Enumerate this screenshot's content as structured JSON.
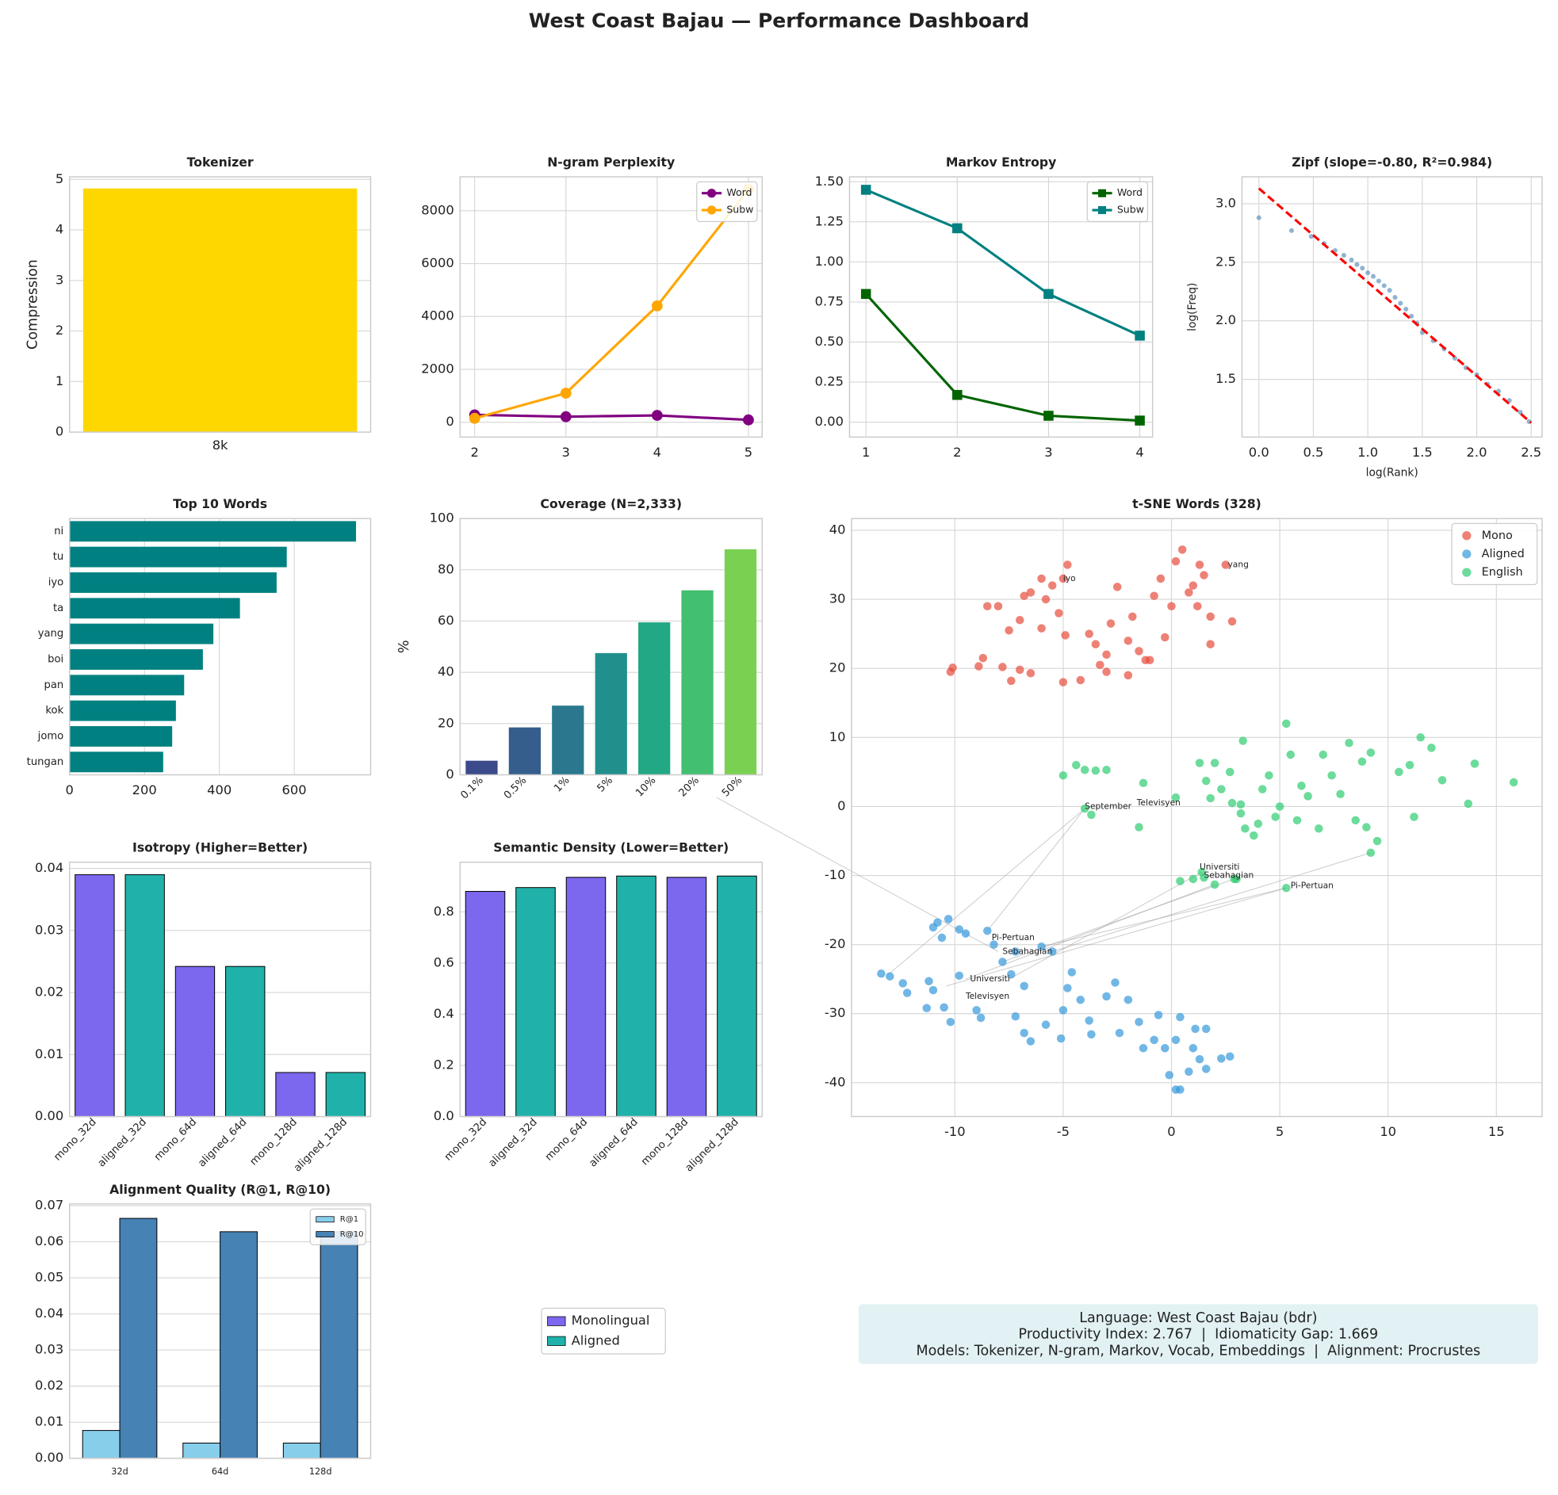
{
  "title": "West Coast Bajau — Performance Dashboard",
  "chart_data": [
    {
      "type": "bar",
      "title": "Tokenizer",
      "ylabel": "Compression",
      "categories": [
        "8k"
      ],
      "values": [
        4.82
      ],
      "color": "#FFD700",
      "ylim": [
        0,
        5.05
      ],
      "yticks": [
        0,
        1,
        2,
        3,
        4,
        5
      ],
      "grid": true
    },
    {
      "type": "line",
      "title": "N-gram Perplexity",
      "x": [
        2,
        3,
        4,
        5
      ],
      "xlim": [
        1.84,
        5.15
      ],
      "xticks": [
        2,
        3,
        4,
        5
      ],
      "ylim": [
        -560,
        9280
      ],
      "yticks": [
        0,
        2000,
        4000,
        6000,
        8000
      ],
      "grid": true,
      "legend": "upper right",
      "series": [
        {
          "name": "Word",
          "color": "#800080",
          "marker": "o",
          "values": [
            280,
            210,
            260,
            90
          ]
        },
        {
          "name": "Subw",
          "color": "#FFA500",
          "marker": "o",
          "values": [
            150,
            1100,
            4400,
            8800
          ]
        }
      ]
    },
    {
      "type": "line",
      "title": "Markov Entropy",
      "x": [
        1,
        2,
        3,
        4
      ],
      "xlim": [
        0.82,
        4.14
      ],
      "xticks": [
        1,
        2,
        3,
        4
      ],
      "ylim": [
        -0.093,
        1.531
      ],
      "yticks": [
        {
          "value": 0,
          "label": "0.00"
        },
        {
          "value": 0.25,
          "label": "0.25"
        },
        {
          "value": 0.5,
          "label": "0.50"
        },
        {
          "value": 0.75,
          "label": "0.75"
        },
        {
          "value": 1,
          "label": "1.00"
        },
        {
          "value": 1.25,
          "label": "1.25"
        },
        {
          "value": 1.5,
          "label": "1.50"
        }
      ],
      "grid": true,
      "legend": "upper right",
      "series": [
        {
          "name": "Word",
          "color": "#006400",
          "marker": "s",
          "values": [
            0.8,
            0.17,
            0.04,
            0.01
          ]
        },
        {
          "name": "Subw",
          "color": "#008080",
          "marker": "s",
          "values": [
            1.45,
            1.21,
            0.8,
            0.54
          ]
        }
      ]
    },
    {
      "type": "scatter",
      "title": "Zipf (slope=-0.80, R²=0.984)",
      "xlabel": "log(Rank)",
      "ylabel": "log(Freq)",
      "color": "#4682B4",
      "x": [
        0,
        0.3,
        0.48,
        0.6,
        0.7,
        0.78,
        0.85,
        0.9,
        0.95,
        1.0,
        1.05,
        1.1,
        1.15,
        1.2,
        1.25,
        1.3,
        1.35,
        1.4,
        1.45,
        1.5,
        1.6,
        1.7,
        1.8,
        1.9,
        2.0,
        2.1,
        2.2,
        2.3,
        2.4,
        2.48
      ],
      "y": [
        2.88,
        2.77,
        2.72,
        2.66,
        2.6,
        2.56,
        2.52,
        2.48,
        2.45,
        2.41,
        2.38,
        2.34,
        2.3,
        2.26,
        2.2,
        2.15,
        2.1,
        2.04,
        1.98,
        1.9,
        1.83,
        1.76,
        1.68,
        1.6,
        1.54,
        1.46,
        1.4,
        1.32,
        1.22,
        1.14
      ],
      "fit": {
        "color": "#FF0000",
        "x": [
          0,
          2.5
        ],
        "y": [
          3.13,
          1.13
        ]
      },
      "xlim": [
        -0.155,
        2.6
      ],
      "xticks": [
        {
          "value": 0,
          "label": "0.0"
        },
        0.5,
        {
          "value": 1,
          "label": "1.0"
        },
        1.5,
        {
          "value": 2,
          "label": "2.0"
        },
        2.5
      ],
      "ylim": [
        1.008,
        3.229
      ],
      "yticks": [
        1.5,
        {
          "value": 2,
          "label": "2.0"
        },
        2.5,
        {
          "value": 3,
          "label": "3.0"
        }
      ],
      "grid": true
    },
    {
      "type": "barh",
      "title": "Top 10 Words",
      "categories": [
        "ni",
        "tu",
        "iyo",
        "ta",
        "yang",
        "boi",
        "pan",
        "kok",
        "jomo",
        "tungan"
      ],
      "values": [
        765,
        580,
        553,
        455,
        384,
        356,
        306,
        284,
        274,
        250
      ],
      "color": "#008080",
      "xlim": [
        0,
        804
      ],
      "xticks": [
        0,
        200,
        400,
        600
      ],
      "grid": true
    },
    {
      "type": "bar",
      "title": "Coverage (N=2,333)",
      "ylabel": "%",
      "categories": [
        "0.1%",
        "0.5%",
        "1%",
        "5%",
        "10%",
        "20%",
        "50%"
      ],
      "values": [
        5.5,
        18.5,
        27,
        47.5,
        59.5,
        72,
        88
      ],
      "colors": [
        "#3b4a8a",
        "#355e8d",
        "#2a788e",
        "#21908d",
        "#22a884",
        "#43bf71",
        "#7ad151"
      ],
      "ylim": [
        0,
        100
      ],
      "yticks": [
        0,
        20,
        40,
        60,
        80,
        100
      ],
      "grid": true
    },
    {
      "type": "tsne",
      "title": "t-SNE Words (328)",
      "legend": "upper right",
      "grid": true,
      "xlim": [
        -14.77,
        17.11
      ],
      "xticks": [
        -10,
        -5,
        0,
        5,
        10,
        15
      ],
      "ylim": [
        -44.9,
        41.7
      ],
      "yticks": [
        -40,
        -30,
        -20,
        -10,
        0,
        10,
        20,
        30,
        40
      ],
      "series": [
        {
          "name": "Mono",
          "color": "#e74c3c",
          "x": [
            -10.2,
            -10.1,
            -8.7,
            -8.5,
            -8,
            -7.5,
            -7.8,
            -7.4,
            -7,
            -6.5,
            -7,
            -6.8,
            -6.5,
            -6,
            -5.8,
            -5.5,
            -5.2,
            -5,
            -4.8,
            -4.9,
            -6,
            -5,
            -4.2,
            -3.8,
            -3.5,
            -3,
            -3.3,
            -3,
            -2.5,
            -2.8,
            -2,
            -2,
            -1.8,
            -1.5,
            -1.2,
            -1,
            -0.8,
            -0.5,
            -0.3,
            0,
            0.2,
            0.5,
            0.8,
            1,
            1.2,
            1.3,
            1.5,
            1.8,
            1.8,
            2.5,
            2.8,
            -8.9
          ],
          "y": [
            19.5,
            20.1,
            21.5,
            29,
            29,
            25.5,
            20.2,
            18.2,
            19.8,
            19.3,
            27,
            30.5,
            31,
            33,
            30,
            32,
            28,
            33,
            35,
            24.8,
            25.8,
            18,
            18.3,
            25,
            23.5,
            22,
            20.5,
            19.5,
            31.8,
            26.5,
            24,
            19,
            27.5,
            22.5,
            21.2,
            21.2,
            30.5,
            33,
            24.5,
            29,
            35.5,
            37.2,
            31,
            32,
            29,
            35,
            33.5,
            27.5,
            23.5,
            35,
            26.8,
            20.3
          ]
        },
        {
          "name": "Aligned",
          "color": "#3498db",
          "x": [
            -13.4,
            -13,
            -12.4,
            -12.2,
            -11,
            -10.8,
            -10.6,
            -10.3,
            -9.8,
            -9.5,
            -11.2,
            -11,
            -11.3,
            -10.5,
            -10.2,
            -9.8,
            -9,
            -8.8,
            -8.5,
            -8.2,
            -7.8,
            -7.4,
            -7.2,
            -6.8,
            -6,
            -5.5,
            -7.2,
            -6.8,
            -6.5,
            -5.8,
            -5.1,
            -5,
            -4.8,
            -4.6,
            -4.2,
            -3.8,
            -3.7,
            -3,
            -2.6,
            -2.4,
            -2,
            -1.5,
            -1.3,
            -0.8,
            -0.6,
            -0.3,
            -0.1,
            0.2,
            0.2,
            0.4,
            0.8,
            1,
            1.1,
            1.3,
            1.6,
            1.6,
            2.3,
            2.7,
            0.4
          ],
          "y": [
            -24.2,
            -24.6,
            -25.6,
            -27,
            -17.5,
            -16.8,
            -19,
            -16.3,
            -17.8,
            -18.4,
            -25.3,
            -26.6,
            -29.2,
            -29.1,
            -31.2,
            -24.5,
            -29.5,
            -30.6,
            -18,
            -20,
            -22.5,
            -24.3,
            -21,
            -26,
            -20.3,
            -21,
            -30.4,
            -32.8,
            -34,
            -31.6,
            -33.6,
            -29.5,
            -26.3,
            -24,
            -28,
            -31,
            -33,
            -27.5,
            -25.5,
            -32.8,
            -28,
            -31.2,
            -35,
            -33.8,
            -30.2,
            -35,
            -38.9,
            -33.8,
            -41,
            -30.5,
            -38.4,
            -35,
            -32.2,
            -36.6,
            -32.2,
            -38,
            -36.5,
            -36.2,
            -41
          ]
        },
        {
          "name": "English",
          "color": "#2ecc71",
          "x": [
            -5,
            -4.4,
            -4,
            -3.5,
            -3,
            -4,
            -3.7,
            -1.5,
            -1.3,
            0.2,
            0.4,
            1,
            1.3,
            1.4,
            1.5,
            1.6,
            1.8,
            2,
            2,
            2.3,
            2.7,
            2.8,
            3.2,
            3.2,
            3,
            3.3,
            3.4,
            3.8,
            4,
            4.2,
            4.5,
            4.8,
            5,
            5.3,
            5.5,
            5.8,
            6,
            6.3,
            6.8,
            7,
            7.4,
            7.8,
            8.2,
            8.5,
            8.8,
            9,
            9.2,
            9.5,
            9.2,
            10.5,
            11,
            11.2,
            11.5,
            12,
            12.5,
            13.7,
            14,
            15.8,
            5.3,
            2.9
          ],
          "y": [
            4.5,
            6,
            5.3,
            5.2,
            5.3,
            -0.3,
            -1.2,
            -3,
            3.4,
            1.3,
            -10.8,
            -10.5,
            6.3,
            -9.5,
            -10.3,
            3.7,
            1.2,
            -11.3,
            6.3,
            2.5,
            5,
            0.5,
            -1,
            0.3,
            -10.5,
            9.5,
            -3.2,
            -4.2,
            -2.5,
            2.5,
            4.5,
            -1.5,
            0,
            12,
            7.5,
            -2,
            3,
            1.5,
            -3.2,
            7.5,
            4.5,
            1.8,
            9.2,
            -2,
            6.5,
            -3,
            7.8,
            -5,
            -6.7,
            5,
            6,
            -1.5,
            10,
            8.5,
            3.8,
            0.4,
            6.2,
            3.5,
            -11.8,
            -10.5
          ]
        }
      ],
      "links": [
        {
          "x": [
            -13.1,
            -4
          ],
          "y": [
            -24.4,
            -0.3
          ]
        },
        {
          "x": [
            -8.5,
            -4
          ],
          "y": [
            -18,
            -0.3
          ]
        },
        {
          "x": [
            -8,
            -21
          ],
          "y": [
            -21,
            1.3
          ]
        },
        {
          "x": [
            -7.5,
            1.4
          ],
          "y": [
            -25,
            -9.5
          ]
        },
        {
          "x": [
            -7.8,
            2.9
          ],
          "y": [
            -22.5,
            -10.5
          ]
        },
        {
          "x": [
            -6,
            5.3
          ],
          "y": [
            -20.3,
            -11.8
          ]
        },
        {
          "x": [
            -5.5,
            9.2
          ],
          "y": [
            -21,
            -6.7
          ]
        },
        {
          "x": [
            -9.5,
            2
          ],
          "y": [
            -25,
            -11.3
          ]
        },
        {
          "x": [
            -10.4,
            5.3
          ],
          "y": [
            -26,
            -11.8
          ]
        }
      ],
      "annotations": [
        {
          "text": "yang",
          "x": 2.6,
          "y": 35,
          "color": "#e74c3c"
        },
        {
          "text": "iyo",
          "x": -5,
          "y": 33,
          "color": "#e74c3c"
        },
        {
          "text": "September",
          "x": -4,
          "y": 0,
          "color": "#2ecc71"
        },
        {
          "text": "Televisyen",
          "x": -1.6,
          "y": 0.5,
          "color": "#2ecc71"
        },
        {
          "text": "Universiti",
          "x": 1.3,
          "y": -8.8,
          "color": "#2ecc71"
        },
        {
          "text": "Sebahagian",
          "x": 1.5,
          "y": -10,
          "color": "#2ecc71"
        },
        {
          "text": "Pi-Pertuan",
          "x": 5.5,
          "y": -11.5,
          "color": "#2ecc71"
        },
        {
          "text": "Pi-Pertuan",
          "x": -8.3,
          "y": -19,
          "color": "#3498db"
        },
        {
          "text": "Sebahagian",
          "x": -7.8,
          "y": -21,
          "color": "#3498db"
        },
        {
          "text": "Universiti",
          "x": -9.3,
          "y": -25,
          "color": "#3498db"
        },
        {
          "text": "Televisyen",
          "x": -9.5,
          "y": -27.5,
          "color": "#3498db"
        }
      ]
    },
    {
      "type": "bar",
      "title": "Isotropy (Higher=Better)",
      "categories": [
        "mono_32d",
        "aligned_32d",
        "mono_64d",
        "aligned_64d",
        "mono_128d",
        "aligned_128d"
      ],
      "values": [
        0.039,
        0.039,
        0.0242,
        0.0242,
        0.0071,
        0.0071
      ],
      "colors": [
        "#7B68EE",
        "#20B2AA",
        "#7B68EE",
        "#20B2AA",
        "#7B68EE",
        "#20B2AA"
      ],
      "edgecolor": "#000000",
      "ylim": [
        0,
        0.041
      ],
      "yticks": [
        {
          "value": 0,
          "label": "0.00"
        },
        0.01,
        0.02,
        0.03,
        0.04
      ],
      "grid": true
    },
    {
      "type": "bar",
      "title": "Semantic Density (Lower=Better)",
      "categories": [
        "mono_32d",
        "aligned_32d",
        "mono_64d",
        "aligned_64d",
        "mono_128d",
        "aligned_128d"
      ],
      "values": [
        0.88,
        0.895,
        0.935,
        0.94,
        0.935,
        0.94
      ],
      "colors": [
        "#7B68EE",
        "#20B2AA",
        "#7B68EE",
        "#20B2AA",
        "#7B68EE",
        "#20B2AA"
      ],
      "edgecolor": "#000000",
      "ylim": [
        0,
        0.994
      ],
      "yticks": [
        {
          "value": 0,
          "label": "0.0"
        },
        0.2,
        0.4,
        0.6,
        0.8
      ],
      "grid": true
    },
    {
      "type": "grouped_bar",
      "title": "Alignment Quality (R@1, R@10)",
      "categories": [
        "32d",
        "64d",
        "128d"
      ],
      "edgecolor": "#000000",
      "legend": "upper right",
      "series": [
        {
          "name": "R@1",
          "color": "#87CEEB",
          "values": [
            0.0077,
            0.0042,
            0.0042
          ]
        },
        {
          "name": "R@10",
          "color": "#4682B4",
          "values": [
            0.0665,
            0.0628,
            0.0628
          ]
        }
      ],
      "ylim": [
        0,
        0.0705
      ],
      "yticks": [
        {
          "value": 0,
          "label": "0.00"
        },
        0.01,
        0.02,
        0.03,
        0.04,
        0.05,
        0.06,
        0.07
      ],
      "grid": true
    }
  ],
  "shared_legend": [
    {
      "name": "Monolingual",
      "color": "#7B68EE"
    },
    {
      "name": "Aligned",
      "color": "#20B2AA"
    }
  ],
  "info_box": [
    "Language: West Coast Bajau (bdr)",
    "Productivity Index: 2.767  |  Idiomaticity Gap: 1.669",
    "Models: Tokenizer, N-gram, Markov, Vocab, Embeddings  |  Alignment: Procrustes"
  ]
}
